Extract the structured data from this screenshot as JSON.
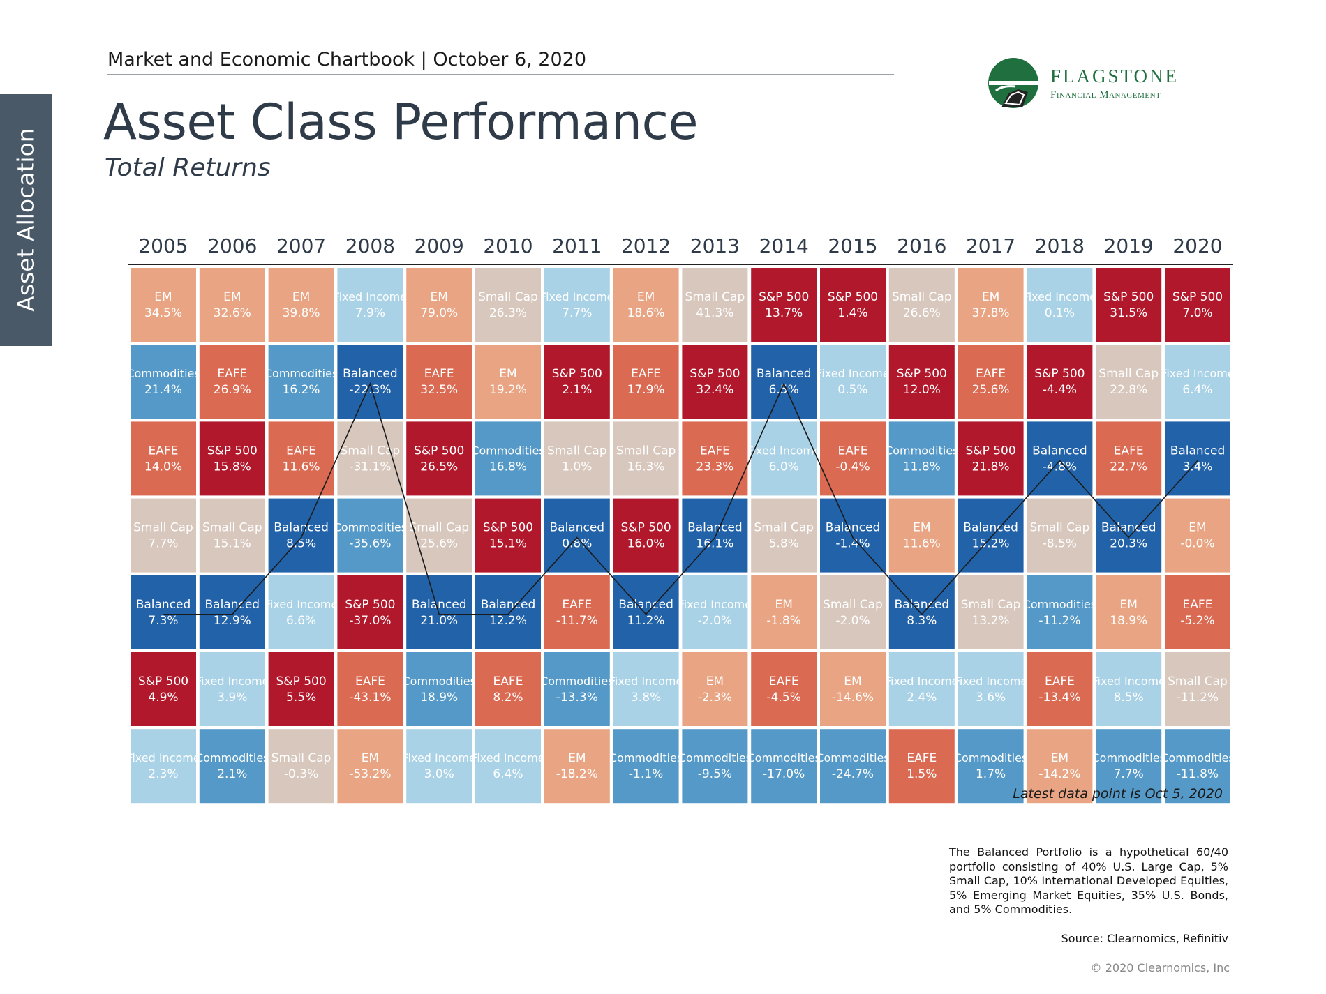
{
  "header": {
    "chartbook_title": "Market and Economic Chartbook | October 6, 2020",
    "page_title": "Asset Class Performance",
    "page_subtitle": "Total Returns"
  },
  "sidebar": {
    "section_label": "Asset Allocation"
  },
  "logo": {
    "name": "FLAGSTONE",
    "tagline": "Financial Management",
    "colors": {
      "green": "#1f6f3f"
    }
  },
  "colors": {
    "EM": "#e9a583",
    "Small Cap": "#d8c7bd",
    "Fixed Income": "#a9d2e7",
    "Commodities": "#5499c7",
    "EAFE": "#db6a53",
    "S&P 500": "#b2182b",
    "Balanced": "#2262a9"
  },
  "chart_data": {
    "type": "table",
    "title": "Asset Class Performance",
    "subtitle": "Total Returns",
    "years": [
      "2005",
      "2006",
      "2007",
      "2008",
      "2009",
      "2010",
      "2011",
      "2012",
      "2013",
      "2014",
      "2015",
      "2016",
      "2017",
      "2018",
      "2019",
      "2020"
    ],
    "columns": [
      [
        [
          "EM",
          "34.5%"
        ],
        [
          "Commodities",
          "21.4%"
        ],
        [
          "EAFE",
          "14.0%"
        ],
        [
          "Small Cap",
          "7.7%"
        ],
        [
          "Balanced",
          "7.3%"
        ],
        [
          "S&P 500",
          "4.9%"
        ],
        [
          "Fixed Income",
          "2.3%"
        ]
      ],
      [
        [
          "EM",
          "32.6%"
        ],
        [
          "EAFE",
          "26.9%"
        ],
        [
          "S&P 500",
          "15.8%"
        ],
        [
          "Small Cap",
          "15.1%"
        ],
        [
          "Balanced",
          "12.9%"
        ],
        [
          "Fixed Income",
          "3.9%"
        ],
        [
          "Commodities",
          "2.1%"
        ]
      ],
      [
        [
          "EM",
          "39.8%"
        ],
        [
          "Commodities",
          "16.2%"
        ],
        [
          "EAFE",
          "11.6%"
        ],
        [
          "Balanced",
          "8.5%"
        ],
        [
          "Fixed Income",
          "6.6%"
        ],
        [
          "S&P 500",
          "5.5%"
        ],
        [
          "Small Cap",
          "-0.3%"
        ]
      ],
      [
        [
          "Fixed Income",
          "7.9%"
        ],
        [
          "Balanced",
          "-22.3%"
        ],
        [
          "Small Cap",
          "-31.1%"
        ],
        [
          "Commodities",
          "-35.6%"
        ],
        [
          "S&P 500",
          "-37.0%"
        ],
        [
          "EAFE",
          "-43.1%"
        ],
        [
          "EM",
          "-53.2%"
        ]
      ],
      [
        [
          "EM",
          "79.0%"
        ],
        [
          "EAFE",
          "32.5%"
        ],
        [
          "S&P 500",
          "26.5%"
        ],
        [
          "Small Cap",
          "25.6%"
        ],
        [
          "Balanced",
          "21.0%"
        ],
        [
          "Commodities",
          "18.9%"
        ],
        [
          "Fixed Income",
          "3.0%"
        ]
      ],
      [
        [
          "Small Cap",
          "26.3%"
        ],
        [
          "EM",
          "19.2%"
        ],
        [
          "Commodities",
          "16.8%"
        ],
        [
          "S&P 500",
          "15.1%"
        ],
        [
          "Balanced",
          "12.2%"
        ],
        [
          "EAFE",
          "8.2%"
        ],
        [
          "Fixed Income",
          "6.4%"
        ]
      ],
      [
        [
          "Fixed Income",
          "7.7%"
        ],
        [
          "S&P 500",
          "2.1%"
        ],
        [
          "Small Cap",
          "1.0%"
        ],
        [
          "Balanced",
          "0.8%"
        ],
        [
          "EAFE",
          "-11.7%"
        ],
        [
          "Commodities",
          "-13.3%"
        ],
        [
          "EM",
          "-18.2%"
        ]
      ],
      [
        [
          "EM",
          "18.6%"
        ],
        [
          "EAFE",
          "17.9%"
        ],
        [
          "Small Cap",
          "16.3%"
        ],
        [
          "S&P 500",
          "16.0%"
        ],
        [
          "Balanced",
          "11.2%"
        ],
        [
          "Fixed Income",
          "3.8%"
        ],
        [
          "Commodities",
          "-1.1%"
        ]
      ],
      [
        [
          "Small Cap",
          "41.3%"
        ],
        [
          "S&P 500",
          "32.4%"
        ],
        [
          "EAFE",
          "23.3%"
        ],
        [
          "Balanced",
          "16.1%"
        ],
        [
          "Fixed Income",
          "-2.0%"
        ],
        [
          "EM",
          "-2.3%"
        ],
        [
          "Commodities",
          "-9.5%"
        ]
      ],
      [
        [
          "S&P 500",
          "13.7%"
        ],
        [
          "Balanced",
          "6.5%"
        ],
        [
          "Fixed Income",
          "6.0%"
        ],
        [
          "Small Cap",
          "5.8%"
        ],
        [
          "EM",
          "-1.8%"
        ],
        [
          "EAFE",
          "-4.5%"
        ],
        [
          "Commodities",
          "-17.0%"
        ]
      ],
      [
        [
          "S&P 500",
          "1.4%"
        ],
        [
          "Fixed Income",
          "0.5%"
        ],
        [
          "EAFE",
          "-0.4%"
        ],
        [
          "Balanced",
          "-1.4%"
        ],
        [
          "Small Cap",
          "-2.0%"
        ],
        [
          "EM",
          "-14.6%"
        ],
        [
          "Commodities",
          "-24.7%"
        ]
      ],
      [
        [
          "Small Cap",
          "26.6%"
        ],
        [
          "S&P 500",
          "12.0%"
        ],
        [
          "Commodities",
          "11.8%"
        ],
        [
          "EM",
          "11.6%"
        ],
        [
          "Balanced",
          "8.3%"
        ],
        [
          "Fixed Income",
          "2.4%"
        ],
        [
          "EAFE",
          "1.5%"
        ]
      ],
      [
        [
          "EM",
          "37.8%"
        ],
        [
          "EAFE",
          "25.6%"
        ],
        [
          "S&P 500",
          "21.8%"
        ],
        [
          "Balanced",
          "15.2%"
        ],
        [
          "Small Cap",
          "13.2%"
        ],
        [
          "Fixed Income",
          "3.6%"
        ],
        [
          "Commodities",
          "1.7%"
        ]
      ],
      [
        [
          "Fixed Income",
          "0.1%"
        ],
        [
          "S&P 500",
          "-4.4%"
        ],
        [
          "Balanced",
          "-4.8%"
        ],
        [
          "Small Cap",
          "-8.5%"
        ],
        [
          "Commodities",
          "-11.2%"
        ],
        [
          "EAFE",
          "-13.4%"
        ],
        [
          "EM",
          "-14.2%"
        ]
      ],
      [
        [
          "S&P 500",
          "31.5%"
        ],
        [
          "Small Cap",
          "22.8%"
        ],
        [
          "EAFE",
          "22.7%"
        ],
        [
          "Balanced",
          "20.3%"
        ],
        [
          "EM",
          "18.9%"
        ],
        [
          "Fixed Income",
          "8.5%"
        ],
        [
          "Commodities",
          "7.7%"
        ]
      ],
      [
        [
          "S&P 500",
          "7.0%"
        ],
        [
          "Fixed Income",
          "6.4%"
        ],
        [
          "Balanced",
          "3.4%"
        ],
        [
          "EM",
          "-0.0%"
        ],
        [
          "EAFE",
          "-5.2%"
        ],
        [
          "Small Cap",
          "-11.2%"
        ],
        [
          "Commodities",
          "-11.8%"
        ]
      ]
    ],
    "highlight_series": "Balanced",
    "annotation": "Latest data point is Oct 5, 2020"
  },
  "footnote": "The Balanced Portfolio is a hypothetical 60/40 portfolio consisting of 40% U.S. Large Cap, 5% Small Cap, 10% International Developed Equities, 5% Emerging Market Equities, 35% U.S. Bonds, and 5% Commodities.",
  "source": "Source: Clearnomics, Refinitiv",
  "copyright": "© 2020 Clearnomics, Inc"
}
